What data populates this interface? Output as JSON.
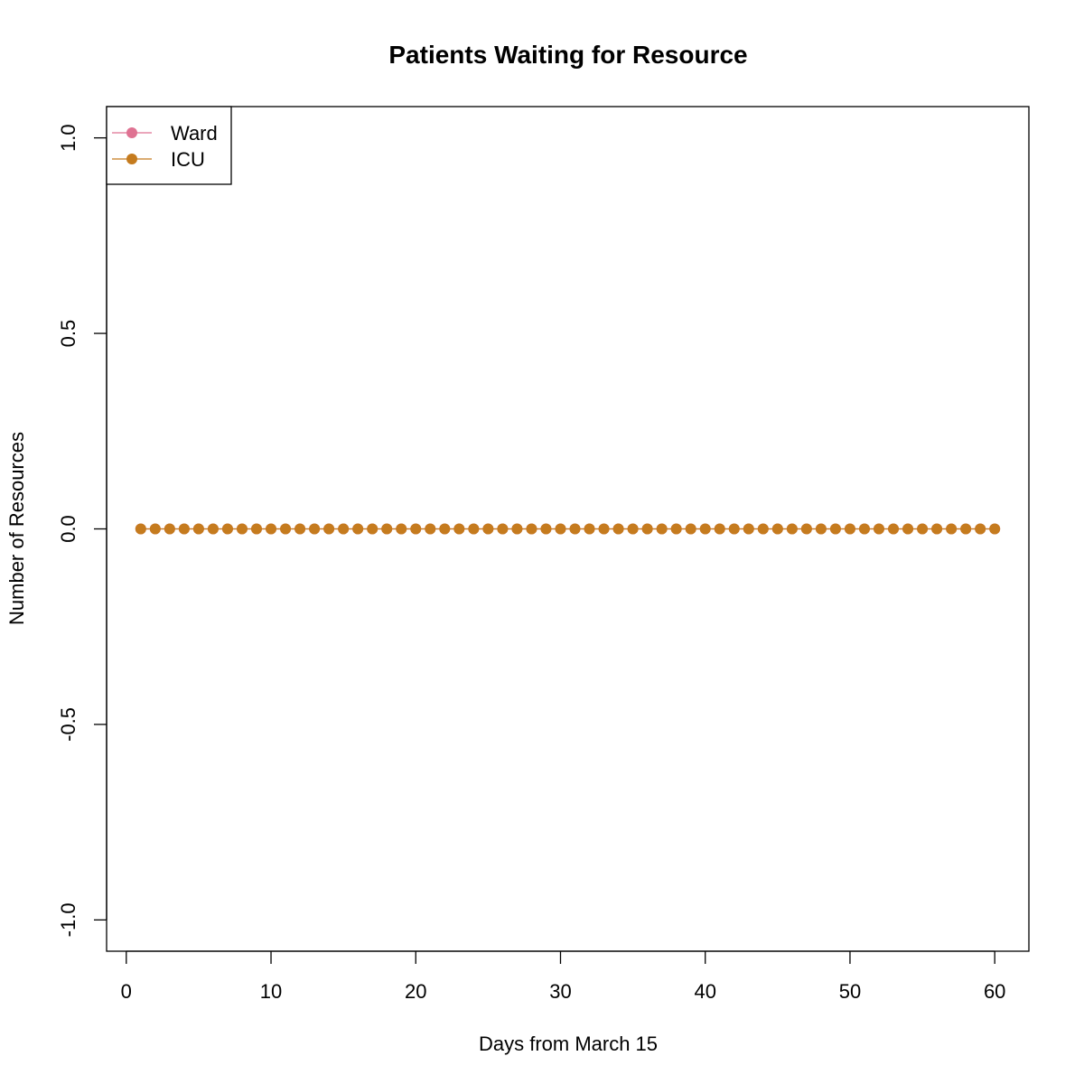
{
  "chart_data": {
    "type": "line",
    "title": "Patients Waiting for Resource",
    "xlabel": "Days from March 15",
    "ylabel": "Number of Resources",
    "xlim": [
      -1.36,
      62.36
    ],
    "ylim": [
      -1.08,
      1.08
    ],
    "x_ticks": [
      0,
      10,
      20,
      30,
      40,
      50,
      60
    ],
    "x_tick_labels": [
      "0",
      "10",
      "20",
      "30",
      "40",
      "50",
      "60"
    ],
    "y_ticks": [
      -1.0,
      -0.5,
      0.0,
      0.5,
      1.0
    ],
    "y_tick_labels": [
      "-1.0",
      "-0.5",
      "0.0",
      "0.5",
      "1.0"
    ],
    "grid": false,
    "legend_position": "top-left",
    "x": [
      1,
      2,
      3,
      4,
      5,
      6,
      7,
      8,
      9,
      10,
      11,
      12,
      13,
      14,
      15,
      16,
      17,
      18,
      19,
      20,
      21,
      22,
      23,
      24,
      25,
      26,
      27,
      28,
      29,
      30,
      31,
      32,
      33,
      34,
      35,
      36,
      37,
      38,
      39,
      40,
      41,
      42,
      43,
      44,
      45,
      46,
      47,
      48,
      49,
      50,
      51,
      52,
      53,
      54,
      55,
      56,
      57,
      58,
      59,
      60
    ],
    "series": [
      {
        "name": "Ward",
        "color": "#df7292",
        "values": [
          0,
          0,
          0,
          0,
          0,
          0,
          0,
          0,
          0,
          0,
          0,
          0,
          0,
          0,
          0,
          0,
          0,
          0,
          0,
          0,
          0,
          0,
          0,
          0,
          0,
          0,
          0,
          0,
          0,
          0,
          0,
          0,
          0,
          0,
          0,
          0,
          0,
          0,
          0,
          0,
          0,
          0,
          0,
          0,
          0,
          0,
          0,
          0,
          0,
          0,
          0,
          0,
          0,
          0,
          0,
          0,
          0,
          0,
          0,
          0
        ]
      },
      {
        "name": "ICU",
        "color": "#c57b1e",
        "values": [
          0,
          0,
          0,
          0,
          0,
          0,
          0,
          0,
          0,
          0,
          0,
          0,
          0,
          0,
          0,
          0,
          0,
          0,
          0,
          0,
          0,
          0,
          0,
          0,
          0,
          0,
          0,
          0,
          0,
          0,
          0,
          0,
          0,
          0,
          0,
          0,
          0,
          0,
          0,
          0,
          0,
          0,
          0,
          0,
          0,
          0,
          0,
          0,
          0,
          0,
          0,
          0,
          0,
          0,
          0,
          0,
          0,
          0,
          0,
          0
        ]
      }
    ]
  }
}
